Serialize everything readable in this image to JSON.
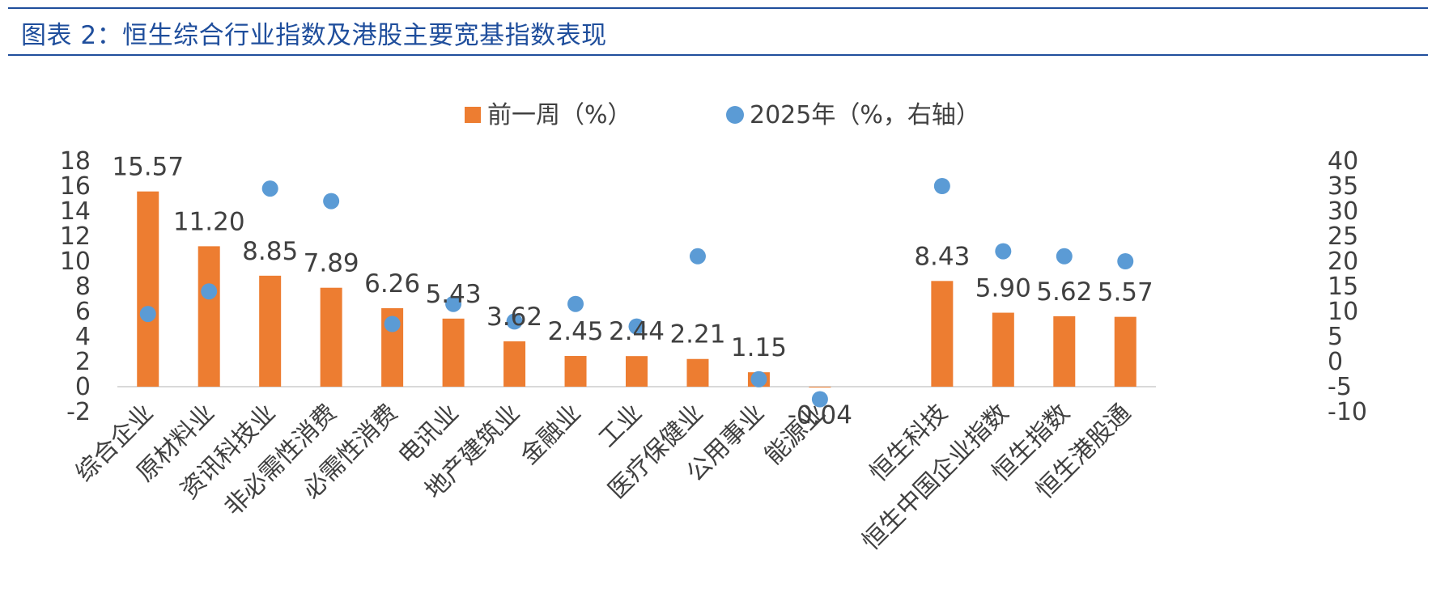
{
  "header": {
    "title": "图表 2：恒生综合行业指数及港股主要宽基指数表现"
  },
  "colors": {
    "bar": "#ed7d31",
    "dot": "#5b9bd5",
    "title": "#1f4e9c",
    "axis_text": "#404040"
  },
  "chart_data": {
    "type": "bar",
    "categories": [
      "综合企业",
      "原材料业",
      "资讯科技业",
      "非必需性消费",
      "必需性消费",
      "电讯业",
      "地产建筑业",
      "金融业",
      "工业",
      "医疗保健业",
      "公用事业",
      "能源业",
      "",
      "恒生科技",
      "恒生中国企业指数",
      "恒生指数",
      "恒生港股通"
    ],
    "series": [
      {
        "name": "前一周（%）",
        "type": "bar",
        "axis": "left",
        "values": [
          15.57,
          11.2,
          8.85,
          7.89,
          6.26,
          5.43,
          3.62,
          2.45,
          2.44,
          2.21,
          1.15,
          -0.04,
          null,
          8.43,
          5.9,
          5.62,
          5.57
        ],
        "labels": [
          "15.57",
          "11.20",
          "8.85",
          "7.89",
          "6.26",
          "5.43",
          "3.62",
          "2.45",
          "2.44",
          "2.21",
          "1.15",
          "-0.04",
          "",
          "8.43",
          "5.90",
          "5.62",
          "5.57"
        ]
      },
      {
        "name": "2025年（%，右轴）",
        "type": "scatter",
        "axis": "right",
        "values": [
          9.5,
          14.0,
          34.5,
          32.0,
          7.5,
          11.5,
          8.0,
          11.5,
          7.0,
          21.0,
          -3.5,
          -7.5,
          null,
          35.0,
          22.0,
          21.0,
          20.0
        ]
      }
    ],
    "ylim_left": [
      -2,
      18
    ],
    "yticks_left": [
      -2,
      0,
      2,
      4,
      6,
      8,
      10,
      12,
      14,
      16,
      18
    ],
    "ylim_right": [
      -10,
      40
    ],
    "yticks_right": [
      -10,
      -5,
      0,
      5,
      10,
      15,
      20,
      25,
      30,
      35,
      40
    ],
    "legend_position": "top-center",
    "grid": false
  }
}
